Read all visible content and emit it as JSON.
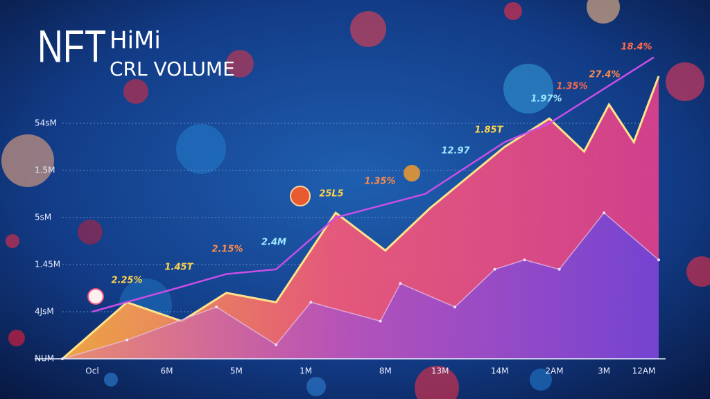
{
  "chart_data": {
    "type": "area",
    "title_parts": [
      "NFT",
      "HiMi",
      "CRL VOLUME"
    ],
    "xlim": [
      0,
      12
    ],
    "xticks": [
      {
        "value": 0.6,
        "label": "Ocl"
      },
      {
        "value": 2.1,
        "label": "6M"
      },
      {
        "value": 3.5,
        "label": "5M"
      },
      {
        "value": 4.9,
        "label": "1M"
      },
      {
        "value": 6.5,
        "label": "8M"
      },
      {
        "value": 7.6,
        "label": "13M"
      },
      {
        "value": 8.8,
        "label": "14M"
      },
      {
        "value": 9.9,
        "label": "2AM"
      },
      {
        "value": 10.9,
        "label": "3M"
      },
      {
        "value": 11.7,
        "label": "12AM"
      }
    ],
    "ylim": [
      0,
      6.5
    ],
    "yticks": [
      {
        "value": 0,
        "label": "NUM"
      },
      {
        "value": 1,
        "label": "4JsM"
      },
      {
        "value": 2,
        "label": "1.45M"
      },
      {
        "value": 3,
        "label": "5sM"
      },
      {
        "value": 4,
        "label": "1.5M"
      },
      {
        "value": 5,
        "label": "54sM"
      }
    ],
    "grid": true,
    "series": [
      {
        "type": "area",
        "color": "#f0588a",
        "x": [
          0,
          1.3,
          2.4,
          3.3,
          4.3,
          5.5,
          6.5,
          7.4,
          8.9,
          9.8,
          10.5,
          11.0,
          11.5,
          12.0
        ],
        "values": [
          0,
          1.2,
          0.8,
          1.4,
          1.2,
          3.1,
          2.3,
          3.2,
          4.5,
          5.1,
          4.4,
          5.4,
          4.6,
          6.0
        ]
      },
      {
        "type": "area",
        "color": "#8a4fd8",
        "x": [
          0,
          1.3,
          3.1,
          4.3,
          5.0,
          6.4,
          6.8,
          7.9,
          8.7,
          9.3,
          10.0,
          10.9,
          12.0
        ],
        "values": [
          0,
          0.4,
          1.1,
          0.3,
          1.2,
          0.8,
          1.6,
          1.1,
          1.9,
          2.1,
          1.9,
          3.1,
          2.1
        ]
      },
      {
        "type": "line",
        "color": "#c94ee8",
        "x": [
          0.6,
          2.3,
          3.3,
          4.3,
          5.5,
          7.3,
          8.9,
          9.8,
          11.9
        ],
        "values": [
          1.0,
          1.5,
          1.8,
          1.9,
          3.0,
          3.5,
          4.6,
          5.0,
          6.4
        ]
      }
    ],
    "annotations": [
      {
        "text": "18.4%",
        "color": "#ff6a4a"
      },
      {
        "text": "27.4%",
        "color": "#ff8a4a"
      },
      {
        "text": "1.35%",
        "color": "#ff6a4a"
      },
      {
        "text": "1.97%",
        "color": "#9ee8ff"
      },
      {
        "text": "1.85T",
        "color": "#ffd34a"
      },
      {
        "text": "12.97",
        "color": "#9ee8ff"
      },
      {
        "text": "1.35%",
        "color": "#ff8a4a"
      },
      {
        "text": "25L5",
        "color": "#ffd34a"
      },
      {
        "text": "2.4M",
        "color": "#9ee8ff"
      },
      {
        "text": "2.15%",
        "color": "#ff8a4a"
      },
      {
        "text": "1.45T",
        "color": "#ffd34a"
      },
      {
        "text": "2.25%",
        "color": "#ffd34a"
      }
    ]
  }
}
